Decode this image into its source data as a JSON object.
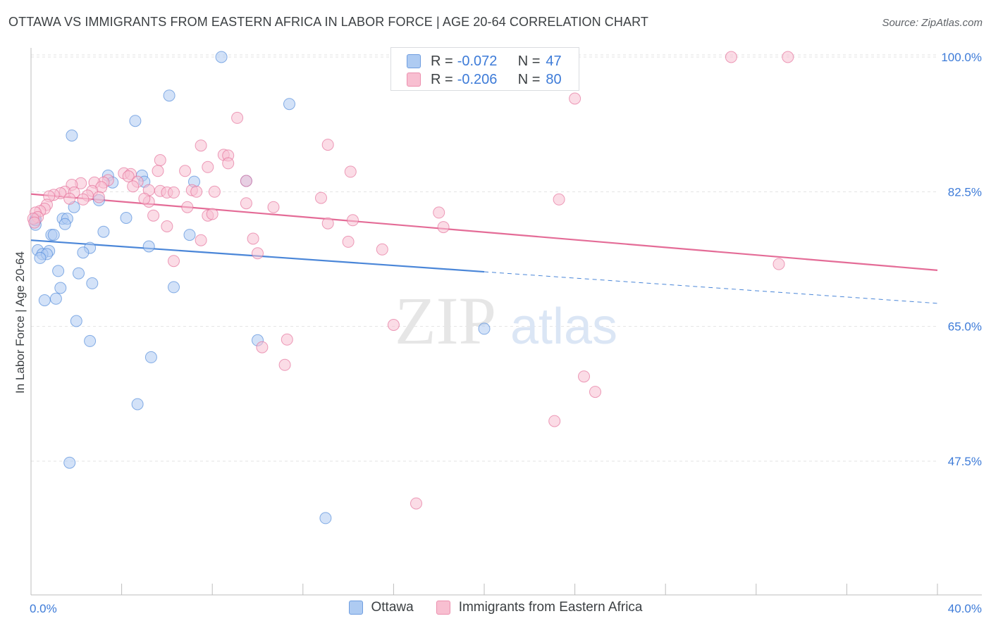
{
  "header": {
    "title": "OTTAWA VS IMMIGRANTS FROM EASTERN AFRICA IN LABOR FORCE | AGE 20-64 CORRELATION CHART",
    "source": "Source: ZipAtlas.com"
  },
  "watermark": {
    "zip": "ZIP",
    "atlas": "atlas"
  },
  "stats_legend": [
    {
      "r_label": "R =",
      "r_value": "-0.072",
      "n_label": "N =",
      "n_value": "47",
      "fill": "#aecbf2",
      "stroke": "#6f9ee0"
    },
    {
      "r_label": "R =",
      "r_value": "-0.206",
      "n_label": "N =",
      "n_value": "80",
      "fill": "#f8bfd1",
      "stroke": "#ec8fae"
    }
  ],
  "chart_data": {
    "type": "scatter",
    "title": "OTTAWA VS IMMIGRANTS FROM EASTERN AFRICA IN LABOR FORCE | AGE 20-64 CORRELATION CHART",
    "xlabel": "",
    "ylabel": "In Labor Force | Age 20-64",
    "xlim": [
      0,
      40
    ],
    "ylim": [
      33,
      102
    ],
    "x_tick_labels": [
      "0.0%",
      "40.0%"
    ],
    "x_tick_values": [
      0,
      40
    ],
    "y_tick_labels": [
      "100.0%",
      "82.5%",
      "65.0%",
      "47.5%"
    ],
    "y_tick_values": [
      100,
      82.5,
      65,
      47.5
    ],
    "grid": true,
    "series": [
      {
        "name": "Ottawa",
        "color": "#4a86d8",
        "fill": "#aecbf2",
        "trend": {
          "x0": 0,
          "y0": 76.2,
          "x1": 20,
          "y1": 72.1,
          "dash_to_x": 40,
          "dash_to_y": 68
        },
        "points": [
          [
            8.4,
            100
          ],
          [
            6.1,
            95
          ],
          [
            11.4,
            93.9
          ],
          [
            4.6,
            91.7
          ],
          [
            1.8,
            89.8
          ],
          [
            3.4,
            84.6
          ],
          [
            4.9,
            84.6
          ],
          [
            9.5,
            83.9
          ],
          [
            7.2,
            83.8
          ],
          [
            5.0,
            83.8
          ],
          [
            3.6,
            83.7
          ],
          [
            3.0,
            81.4
          ],
          [
            1.9,
            80.5
          ],
          [
            4.2,
            79.1
          ],
          [
            1.4,
            79.0
          ],
          [
            1.6,
            79.0
          ],
          [
            0.2,
            79.0
          ],
          [
            1.5,
            78.3
          ],
          [
            0.2,
            78.2
          ],
          [
            3.2,
            77.3
          ],
          [
            7.0,
            76.9
          ],
          [
            0.9,
            76.9
          ],
          [
            1.0,
            76.9
          ],
          [
            5.2,
            75.4
          ],
          [
            0.3,
            74.9
          ],
          [
            0.8,
            74.8
          ],
          [
            2.6,
            75.2
          ],
          [
            2.3,
            74.6
          ],
          [
            0.5,
            74.4
          ],
          [
            0.7,
            74.4
          ],
          [
            0.4,
            73.9
          ],
          [
            1.2,
            72.2
          ],
          [
            2.1,
            71.9
          ],
          [
            2.7,
            70.6
          ],
          [
            6.3,
            70.1
          ],
          [
            1.3,
            70.0
          ],
          [
            1.1,
            68.6
          ],
          [
            0.6,
            68.4
          ],
          [
            2.0,
            65.7
          ],
          [
            20.0,
            64.7
          ],
          [
            10.0,
            63.2
          ],
          [
            2.6,
            63.1
          ],
          [
            5.3,
            61.0
          ],
          [
            4.7,
            54.9
          ],
          [
            1.7,
            47.3
          ],
          [
            13.0,
            40.1
          ],
          [
            0.2,
            78.8
          ]
        ]
      },
      {
        "name": "Immigrants from Eastern Africa",
        "color": "#e46c97",
        "fill": "#f8bfd1",
        "trend": {
          "x0": 0,
          "y0": 82.2,
          "x1": 40,
          "y1": 72.3
        },
        "points": [
          [
            30.9,
            100
          ],
          [
            33.4,
            100
          ],
          [
            24.0,
            94.6
          ],
          [
            9.1,
            92.1
          ],
          [
            7.5,
            88.5
          ],
          [
            13.1,
            88.6
          ],
          [
            8.5,
            87.3
          ],
          [
            8.7,
            87.2
          ],
          [
            5.7,
            86.6
          ],
          [
            8.7,
            86.2
          ],
          [
            7.8,
            85.7
          ],
          [
            5.6,
            85.2
          ],
          [
            6.8,
            85.2
          ],
          [
            14.1,
            85.1
          ],
          [
            4.1,
            84.9
          ],
          [
            4.4,
            84.8
          ],
          [
            4.3,
            84.5
          ],
          [
            3.4,
            84.0
          ],
          [
            9.5,
            83.9
          ],
          [
            4.7,
            83.8
          ],
          [
            3.2,
            83.7
          ],
          [
            2.8,
            83.7
          ],
          [
            2.2,
            83.6
          ],
          [
            1.8,
            83.4
          ],
          [
            3.1,
            83.1
          ],
          [
            4.5,
            83.2
          ],
          [
            5.2,
            82.7
          ],
          [
            7.1,
            82.7
          ],
          [
            8.1,
            82.5
          ],
          [
            5.7,
            82.6
          ],
          [
            6.0,
            82.4
          ],
          [
            2.7,
            82.6
          ],
          [
            1.5,
            82.5
          ],
          [
            1.9,
            82.4
          ],
          [
            1.3,
            82.3
          ],
          [
            1.0,
            82.1
          ],
          [
            0.8,
            81.9
          ],
          [
            2.5,
            82.0
          ],
          [
            3.0,
            81.8
          ],
          [
            1.7,
            81.6
          ],
          [
            12.8,
            81.7
          ],
          [
            23.3,
            81.5
          ],
          [
            2.3,
            81.5
          ],
          [
            5.2,
            81.2
          ],
          [
            5.0,
            81.6
          ],
          [
            6.3,
            82.4
          ],
          [
            7.3,
            82.5
          ],
          [
            9.5,
            81.0
          ],
          [
            10.7,
            80.5
          ],
          [
            0.7,
            80.8
          ],
          [
            0.6,
            80.3
          ],
          [
            6.9,
            80.5
          ],
          [
            0.4,
            80.0
          ],
          [
            0.2,
            79.8
          ],
          [
            18.0,
            79.8
          ],
          [
            5.4,
            79.4
          ],
          [
            7.8,
            79.4
          ],
          [
            0.3,
            79.2
          ],
          [
            8.0,
            79.6
          ],
          [
            14.2,
            78.8
          ],
          [
            13.1,
            78.4
          ],
          [
            18.2,
            77.9
          ],
          [
            6.0,
            78.0
          ],
          [
            7.5,
            76.2
          ],
          [
            9.8,
            76.4
          ],
          [
            14.0,
            76.0
          ],
          [
            15.5,
            75.0
          ],
          [
            10.0,
            74.5
          ],
          [
            6.3,
            73.5
          ],
          [
            33.0,
            73.1
          ],
          [
            10.2,
            62.3
          ],
          [
            16.0,
            65.2
          ],
          [
            11.3,
            63.3
          ],
          [
            11.2,
            60.0
          ],
          [
            24.4,
            58.5
          ],
          [
            24.9,
            56.5
          ],
          [
            23.1,
            52.7
          ],
          [
            17.0,
            42.0
          ],
          [
            0.1,
            79.0
          ],
          [
            0.15,
            78.5
          ]
        ]
      }
    ]
  },
  "legend_bottom": [
    {
      "label": "Ottawa",
      "fill": "#aecbf2",
      "stroke": "#6f9ee0"
    },
    {
      "label": "Immigrants from Eastern Africa",
      "fill": "#f8bfd1",
      "stroke": "#ec8fae"
    }
  ]
}
